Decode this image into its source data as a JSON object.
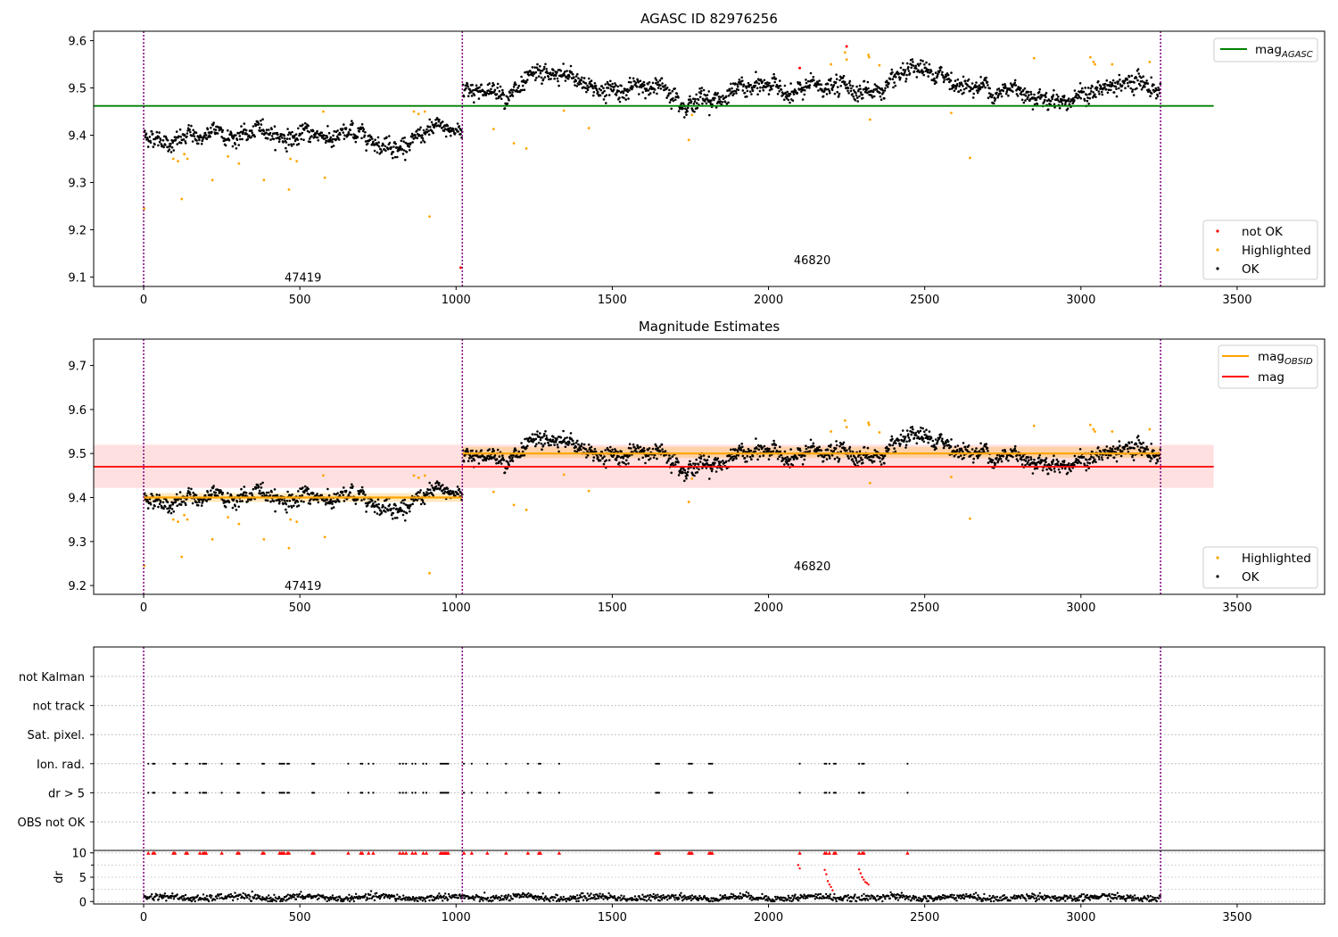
{
  "chart_data": [
    {
      "type": "scatter",
      "title": "AGASC ID 82976256",
      "xlim": [
        -160,
        3780
      ],
      "ylim": [
        9.08,
        9.62
      ],
      "x_ticks": [
        0,
        500,
        1000,
        1500,
        2000,
        2500,
        3000,
        3500
      ],
      "y_ticks": [
        9.1,
        9.2,
        9.3,
        9.4,
        9.5,
        9.6
      ],
      "grid": false,
      "obsid_boundaries": [
        0,
        1020,
        3255
      ],
      "annotations": [
        {
          "text": "47419",
          "x": 510,
          "y": 9.1
        },
        {
          "text": "46820",
          "x": 2140,
          "y": 9.137
        }
      ],
      "hlines": [
        {
          "name": "mag_AGASC",
          "legend_main": "mag",
          "legend_sub": "AGASC",
          "y": 9.462,
          "x_range": [
            -160,
            3425
          ],
          "color": "#008000"
        }
      ],
      "series": [
        {
          "name": "not OK",
          "color": "#ff0000"
        },
        {
          "name": "Highlighted",
          "color": "#ffa500"
        },
        {
          "name": "OK",
          "color": "#000000"
        }
      ],
      "segments": [
        {
          "x_range": [
            0,
            1020
          ],
          "level": 9.4,
          "noise": 0.015
        },
        {
          "x_range": [
            1020,
            3255
          ],
          "level": 9.497,
          "noise": 0.016
        }
      ],
      "highlighted_points": [
        [
          2,
          9.245
        ],
        [
          95,
          9.35
        ],
        [
          110,
          9.345
        ],
        [
          122,
          9.265
        ],
        [
          130,
          9.36
        ],
        [
          140,
          9.35
        ],
        [
          220,
          9.305
        ],
        [
          270,
          9.355
        ],
        [
          305,
          9.34
        ],
        [
          385,
          9.305
        ],
        [
          465,
          9.285
        ],
        [
          470,
          9.35
        ],
        [
          490,
          9.345
        ],
        [
          575,
          9.45
        ],
        [
          580,
          9.31
        ],
        [
          865,
          9.45
        ],
        [
          880,
          9.445
        ],
        [
          900,
          9.45
        ],
        [
          915,
          9.228
        ],
        [
          1120,
          9.413
        ],
        [
          1185,
          9.383
        ],
        [
          1225,
          9.372
        ],
        [
          1345,
          9.452
        ],
        [
          1425,
          9.415
        ],
        [
          1745,
          9.39
        ],
        [
          1755,
          9.443
        ],
        [
          2200,
          9.55
        ],
        [
          2245,
          9.575
        ],
        [
          2250,
          9.56
        ],
        [
          2320,
          9.57
        ],
        [
          2322,
          9.565
        ],
        [
          2325,
          9.433
        ],
        [
          2355,
          9.548
        ],
        [
          2585,
          9.447
        ],
        [
          2645,
          9.352
        ],
        [
          2850,
          9.563
        ],
        [
          3030,
          9.565
        ],
        [
          3040,
          9.555
        ],
        [
          3045,
          9.55
        ],
        [
          3100,
          9.55
        ],
        [
          3220,
          9.555
        ]
      ],
      "not_ok_points": [
        [
          2250,
          9.588
        ],
        [
          2100,
          9.542
        ],
        [
          1015,
          9.12
        ]
      ],
      "legend": {
        "hline_position": "top-right",
        "points_position": "bottom-right"
      }
    },
    {
      "type": "scatter",
      "title": "Magnitude Estimates",
      "xlim": [
        -160,
        3780
      ],
      "ylim": [
        9.18,
        9.76
      ],
      "x_ticks": [
        0,
        500,
        1000,
        1500,
        2000,
        2500,
        3000,
        3500
      ],
      "y_ticks": [
        9.2,
        9.3,
        9.4,
        9.5,
        9.6,
        9.7
      ],
      "grid": false,
      "obsid_boundaries": [
        0,
        1020,
        3255
      ],
      "annotations": [
        {
          "text": "47419",
          "x": 510,
          "y": 9.2
        },
        {
          "text": "46820",
          "x": 2140,
          "y": 9.245
        }
      ],
      "hlines": [
        {
          "name": "mag_OBSID",
          "legend_main": "mag",
          "legend_sub": "OBSID",
          "segments": [
            {
              "x_range": [
                0,
                1020
              ],
              "y": 9.4,
              "band": [
                9.39,
                9.41
              ]
            },
            {
              "x_range": [
                1020,
                3255
              ],
              "y": 9.5,
              "band": [
                9.49,
                9.515
              ]
            }
          ],
          "color": "#ffa500"
        },
        {
          "name": "mag",
          "legend_main": "mag",
          "y": 9.47,
          "band": [
            9.422,
            9.52
          ],
          "x_range": [
            -160,
            3425
          ],
          "color": "#ff0000"
        }
      ],
      "series": [
        {
          "name": "Highlighted",
          "color": "#ffa500"
        },
        {
          "name": "OK",
          "color": "#000000"
        }
      ],
      "legend": {
        "hline_position": "top-right",
        "points_position": "bottom-right"
      }
    },
    {
      "type": "scatter",
      "title": "",
      "xlim": [
        -160,
        3780
      ],
      "x_ticks": [
        0,
        500,
        1000,
        1500,
        2000,
        2500,
        3000,
        3500
      ],
      "categories": [
        "not Kalman",
        "not track",
        "Sat. pixel.",
        "Ion. rad.",
        "dr > 5",
        "OBS not OK"
      ],
      "flag_times": [
        15,
        30,
        35,
        95,
        100,
        135,
        140,
        180,
        190,
        195,
        200,
        250,
        300,
        305,
        380,
        385,
        435,
        440,
        445,
        450,
        460,
        465,
        540,
        545,
        655,
        695,
        700,
        720,
        735,
        820,
        830,
        840,
        860,
        870,
        895,
        905,
        950,
        955,
        960,
        965,
        970,
        975,
        1025,
        1050,
        1100,
        1160,
        1230,
        1265,
        1270,
        1330,
        1640,
        1645,
        1650,
        1745,
        1750,
        1755,
        1810,
        1815,
        1820,
        2100,
        2180,
        2185,
        2195,
        2210,
        2215,
        2290,
        2300,
        2305,
        2445
      ],
      "flag_rows": [
        "Ion. rad.",
        "dr > 5"
      ],
      "obsid_boundaries": [
        0,
        1020,
        3255
      ]
    },
    {
      "type": "scatter",
      "title": "",
      "ylabel": "dr",
      "xlim": [
        -160,
        3780
      ],
      "ylim": [
        -0.5,
        10.5
      ],
      "x_ticks": [
        0,
        500,
        1000,
        1500,
        2000,
        2500,
        3000,
        3500
      ],
      "x_tick_labels": [
        "0",
        "500",
        "1000",
        "1500",
        "2000",
        "2500",
        "3000",
        "3500"
      ],
      "y_ticks": [
        0,
        5,
        10
      ],
      "minor_y_ticks": [
        2.5,
        7.5
      ],
      "obsid_boundaries": [
        0,
        1020,
        3255
      ],
      "capped_value": 10,
      "capped_color": "#ff0000",
      "high_dr_points": [
        [
          2095,
          7.5
        ],
        [
          2100,
          6.8
        ],
        [
          2180,
          6.5
        ],
        [
          2185,
          5.6
        ],
        [
          2190,
          4.2
        ],
        [
          2195,
          3.5
        ],
        [
          2200,
          3.0
        ],
        [
          2205,
          2.3
        ],
        [
          2290,
          6.6
        ],
        [
          2295,
          5.8
        ],
        [
          2300,
          5.0
        ],
        [
          2305,
          4.5
        ],
        [
          2310,
          4.0
        ],
        [
          2315,
          3.8
        ],
        [
          2320,
          3.5
        ]
      ]
    }
  ]
}
